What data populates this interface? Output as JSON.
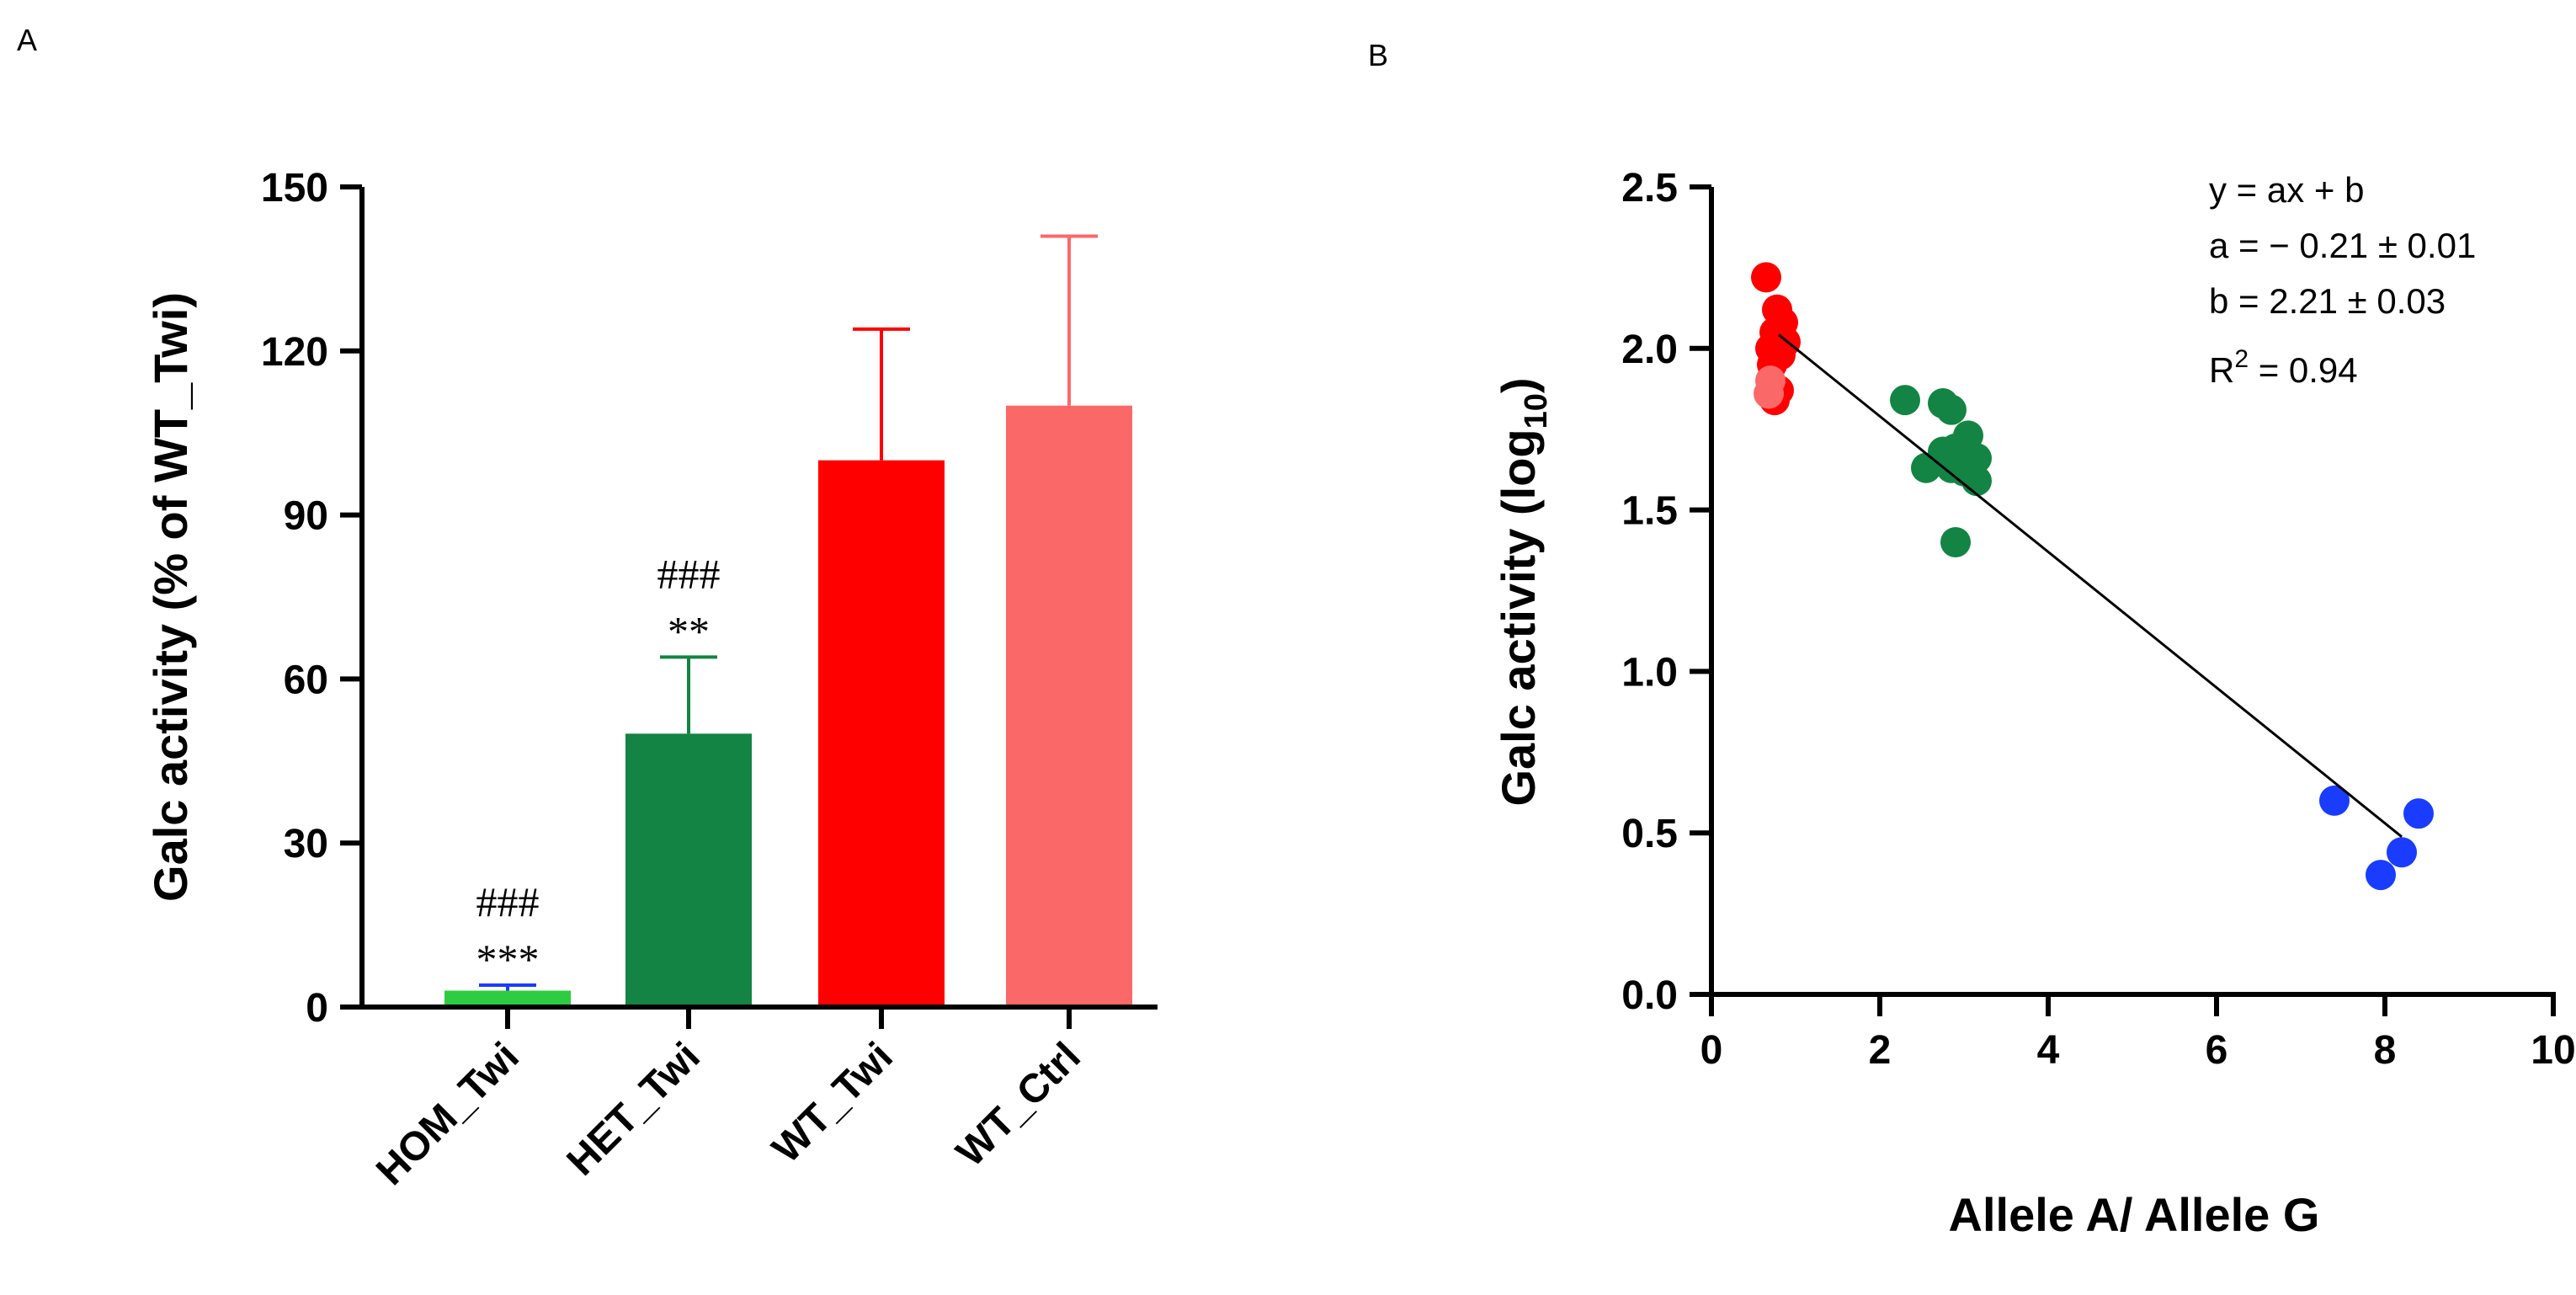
{
  "panels": {
    "a": {
      "letter": "A"
    },
    "b": {
      "letter": "B"
    }
  },
  "chart_data": [
    {
      "type": "bar",
      "title": "",
      "ylabel": "Galc activity (% of WT_Twi)",
      "xlabel": "",
      "ylim": [
        0,
        150
      ],
      "yticks": [
        0,
        30,
        60,
        90,
        120,
        150
      ],
      "categories": [
        "HOM_Twi",
        "HET_Twi",
        "WT_Twi",
        "WT_Ctrl"
      ],
      "values": [
        3,
        50,
        100,
        110
      ],
      "error_upper": [
        4,
        64,
        124,
        141
      ],
      "colors": [
        "#2ecc40",
        "#138443",
        "#ff0000",
        "#fb6868"
      ],
      "error_colors": [
        "#1a3cff",
        "#138443",
        "#ff0000",
        "#fb6868"
      ],
      "annotations": [
        {
          "category": "HOM_Twi",
          "lines": [
            "###",
            "***"
          ]
        },
        {
          "category": "HET_Twi",
          "lines": [
            "###",
            "**"
          ]
        }
      ],
      "grid": false,
      "legend": "none"
    },
    {
      "type": "scatter",
      "title": "",
      "xlabel": "Allele A/ Allele G",
      "ylabel_main": "Galc activity (log",
      "ylabel_sub": "10",
      "ylabel_close": ")",
      "xlim": [
        0,
        10
      ],
      "ylim": [
        0,
        2.5
      ],
      "xticks": [
        "0",
        "2",
        "4",
        "6",
        "8",
        "10"
      ],
      "yticks": [
        "0.0",
        "0.5",
        "1.0",
        "1.5",
        "2.0",
        "2.5"
      ],
      "series": [
        {
          "color": "#ff0000",
          "points": [
            [
              0.65,
              2.22
            ],
            [
              0.78,
              2.12
            ],
            [
              0.85,
              2.08
            ],
            [
              0.75,
              2.05
            ],
            [
              0.88,
              2.02
            ],
            [
              0.7,
              2.0
            ],
            [
              0.82,
              1.98
            ],
            [
              0.72,
              1.95
            ],
            [
              0.8,
              1.87
            ],
            [
              0.75,
              1.84
            ]
          ]
        },
        {
          "color": "#fb6868",
          "points": [
            [
              0.7,
              1.9
            ],
            [
              0.68,
              1.86
            ]
          ]
        },
        {
          "color": "#138443",
          "points": [
            [
              2.3,
              1.84
            ],
            [
              2.75,
              1.83
            ],
            [
              2.85,
              1.81
            ],
            [
              3.05,
              1.73
            ],
            [
              2.9,
              1.69
            ],
            [
              2.75,
              1.68
            ],
            [
              3.15,
              1.66
            ],
            [
              2.55,
              1.63
            ],
            [
              2.85,
              1.63
            ],
            [
              3.0,
              1.62
            ],
            [
              3.15,
              1.59
            ],
            [
              2.9,
              1.4
            ]
          ]
        },
        {
          "color": "#1a3cff",
          "points": [
            [
              7.4,
              0.6
            ],
            [
              8.4,
              0.56
            ],
            [
              8.2,
              0.44
            ],
            [
              7.95,
              0.37
            ]
          ]
        }
      ],
      "fit_line": {
        "x": [
          0.8,
          8.2
        ],
        "slope": -0.21,
        "intercept": 2.21
      },
      "fit_text": {
        "equation": "y = ax + b",
        "a": "a = − 0.21 ± 0.01",
        "b": "b = 2.21 ± 0.03",
        "r2_prefix": "R",
        "r2_sup": "2",
        "r2_value": " = 0.94"
      },
      "grid": false,
      "legend": "none"
    }
  ]
}
